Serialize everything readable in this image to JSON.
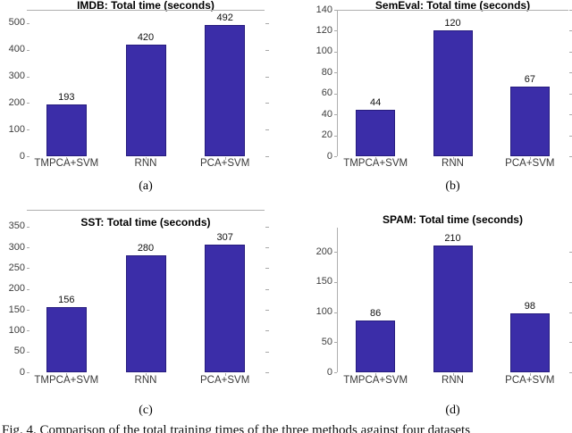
{
  "figure_caption": "Fig. 4. Comparison of the total training times of the three methods against four datasets",
  "colors": {
    "bar_fill": "#3b2da8",
    "bar_edge": "#261c7e",
    "axis_line": "#b0b0b0",
    "tick_mark": "#a8a8a8",
    "tick_label": "#3d3d3d",
    "title": "#000000",
    "value_label": "#101010"
  },
  "chart_data": [
    {
      "type": "bar",
      "panel_label": "(a)",
      "title": "IMDB: Total time (seconds)",
      "categories": [
        "TMPCA+SVM",
        "RNN",
        "PCA+SVM"
      ],
      "values": [
        193,
        420,
        492
      ],
      "yticks": [
        0,
        100,
        200,
        300,
        400,
        500
      ],
      "ylim": [
        0,
        550
      ],
      "xlabel": "",
      "ylabel": "",
      "grid": false,
      "legend": "none"
    },
    {
      "type": "bar",
      "panel_label": "(b)",
      "title": "SemEval: Total time (seconds)",
      "categories": [
        "TMPCA+SVM",
        "RNN",
        "PCA+SVM"
      ],
      "values": [
        44,
        120,
        67
      ],
      "yticks": [
        0,
        20,
        40,
        60,
        80,
        100,
        120,
        140
      ],
      "ylim": [
        0,
        140
      ],
      "xlabel": "",
      "ylabel": "",
      "grid": false,
      "legend": "none"
    },
    {
      "type": "bar",
      "panel_label": "(c)",
      "title": "SST: Total time (seconds)",
      "categories": [
        "TMPCA+SVM",
        "RNN",
        "PCA+SVM"
      ],
      "values": [
        156,
        280,
        307
      ],
      "yticks": [
        0,
        50,
        100,
        150,
        200,
        250,
        300,
        350
      ],
      "ylim": [
        0,
        390
      ],
      "xlabel": "",
      "ylabel": "",
      "grid": false,
      "legend": "none"
    },
    {
      "type": "bar",
      "panel_label": "(d)",
      "title": "SPAM: Total time (seconds)",
      "categories": [
        "TMPCA+SVM",
        "RNN",
        "PCA+SVM"
      ],
      "values": [
        86,
        210,
        98
      ],
      "yticks": [
        0,
        50,
        100,
        150,
        200
      ],
      "ylim": [
        0,
        240
      ],
      "xlabel": "",
      "ylabel": "",
      "grid": false,
      "legend": "none"
    }
  ]
}
